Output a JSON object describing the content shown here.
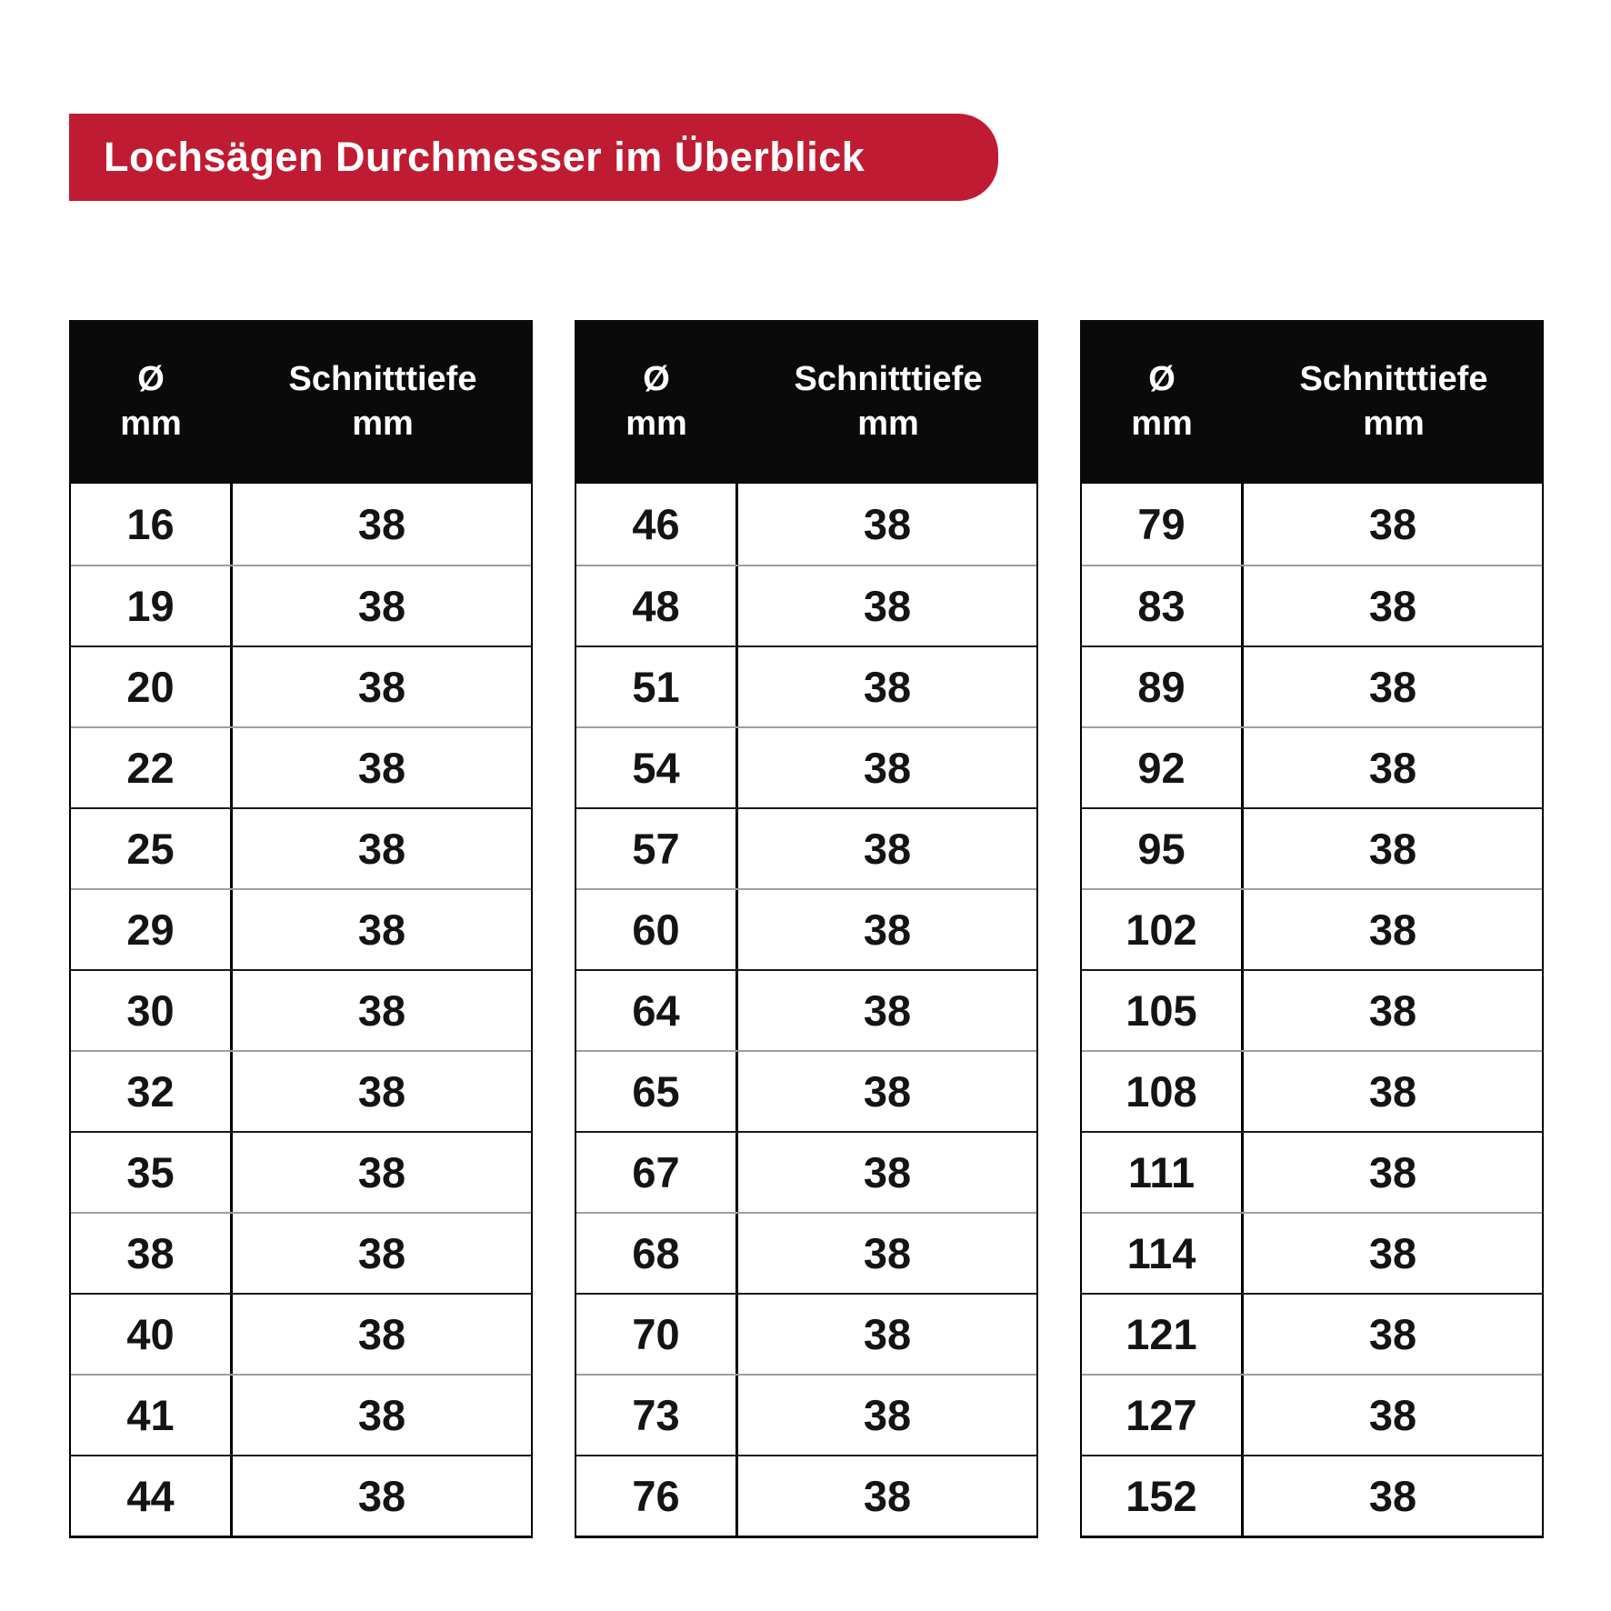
{
  "banner": {
    "title": "Lochsägen Durchmesser im Überblick"
  },
  "table_header": {
    "diameter_symbol": "Ø",
    "diameter_unit": "mm",
    "depth_label": "Schnitttiefe",
    "depth_unit": "mm"
  },
  "colors": {
    "banner_red": "#bf1c33",
    "header_bg": "#0a0a0a",
    "row_separator": "#9e9e9e",
    "text_dark": "#141414"
  },
  "chart_data": {
    "type": "table",
    "title": "Lochsägen Durchmesser im Überblick",
    "columns": [
      "Ø mm",
      "Schnitttiefe mm"
    ],
    "tables": [
      {
        "rows": [
          [
            16,
            38
          ],
          [
            19,
            38
          ],
          [
            20,
            38
          ],
          [
            22,
            38
          ],
          [
            25,
            38
          ],
          [
            29,
            38
          ],
          [
            30,
            38
          ],
          [
            32,
            38
          ],
          [
            35,
            38
          ],
          [
            38,
            38
          ],
          [
            40,
            38
          ],
          [
            41,
            38
          ],
          [
            44,
            38
          ]
        ]
      },
      {
        "rows": [
          [
            46,
            38
          ],
          [
            48,
            38
          ],
          [
            51,
            38
          ],
          [
            54,
            38
          ],
          [
            57,
            38
          ],
          [
            60,
            38
          ],
          [
            64,
            38
          ],
          [
            65,
            38
          ],
          [
            67,
            38
          ],
          [
            68,
            38
          ],
          [
            70,
            38
          ],
          [
            73,
            38
          ],
          [
            76,
            38
          ]
        ]
      },
      {
        "rows": [
          [
            79,
            38
          ],
          [
            83,
            38
          ],
          [
            89,
            38
          ],
          [
            92,
            38
          ],
          [
            95,
            38
          ],
          [
            102,
            38
          ],
          [
            105,
            38
          ],
          [
            108,
            38
          ],
          [
            111,
            38
          ],
          [
            114,
            38
          ],
          [
            121,
            38
          ],
          [
            127,
            38
          ],
          [
            152,
            38
          ]
        ]
      }
    ]
  }
}
